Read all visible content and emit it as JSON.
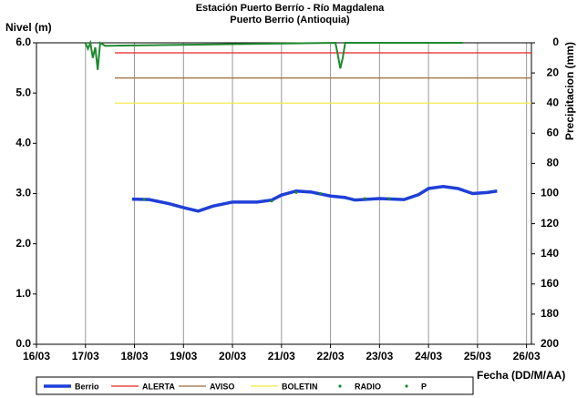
{
  "chart_data": {
    "type": "line",
    "title": "Estación Puerto Berrío - Río Magdalena",
    "subtitle": "Puerto Berrio (Antioquia)",
    "y_label": "Nivel (m)",
    "y2_label": "Precipitacion (mm)",
    "x_label": "Fecha (DD/M/AA)",
    "xlim": [
      16,
      26.1
    ],
    "xticks": [
      {
        "value": 16,
        "label": "16/03"
      },
      {
        "value": 17,
        "label": "17/03"
      },
      {
        "value": 18,
        "label": "18/03"
      },
      {
        "value": 19,
        "label": "19/03"
      },
      {
        "value": 20,
        "label": "20/03"
      },
      {
        "value": 21,
        "label": "21/03"
      },
      {
        "value": 22,
        "label": "22/03"
      },
      {
        "value": 23,
        "label": "23/03"
      },
      {
        "value": 24,
        "label": "24/03"
      },
      {
        "value": 25,
        "label": "25/03"
      },
      {
        "value": 26,
        "label": "26/03"
      }
    ],
    "ylim": [
      0,
      6
    ],
    "yticks": [
      {
        "value": 0,
        "label": "0.0"
      },
      {
        "value": 1,
        "label": "1.0"
      },
      {
        "value": 2,
        "label": "2.0"
      },
      {
        "value": 3,
        "label": "3.0"
      },
      {
        "value": 4,
        "label": "4.0"
      },
      {
        "value": 5,
        "label": "5.0"
      },
      {
        "value": 6,
        "label": "6.0"
      }
    ],
    "y2lim": [
      200,
      0
    ],
    "y2ticks": [
      0,
      20,
      40,
      60,
      80,
      100,
      120,
      140,
      160,
      180,
      200
    ],
    "grid": "x",
    "series": [
      {
        "name": "Berrio",
        "color": "#1f3fd8",
        "style": "thick",
        "x": [
          17.95,
          18.3,
          18.7,
          19.0,
          19.3,
          19.6,
          20.0,
          20.5,
          20.8,
          21.0,
          21.3,
          21.6,
          22.0,
          22.3,
          22.5,
          23.0,
          23.5,
          23.8,
          24.0,
          24.3,
          24.6,
          24.9,
          25.2,
          25.4
        ],
        "values": [
          2.89,
          2.88,
          2.8,
          2.72,
          2.65,
          2.75,
          2.83,
          2.83,
          2.87,
          2.97,
          3.05,
          3.03,
          2.95,
          2.92,
          2.87,
          2.9,
          2.88,
          2.98,
          3.1,
          3.14,
          3.1,
          3.0,
          3.02,
          3.05
        ]
      },
      {
        "name": "ALERTA",
        "color": "#e8241e",
        "style": "line",
        "x": [
          17.6,
          26.1
        ],
        "values": [
          5.8,
          5.8
        ]
      },
      {
        "name": "AVISO",
        "color": "#9b6b3a",
        "style": "line",
        "x": [
          17.6,
          26.1
        ],
        "values": [
          5.3,
          5.3
        ]
      },
      {
        "name": "BOLETIN",
        "color": "#f2ea3a",
        "style": "line",
        "x": [
          17.6,
          26.1
        ],
        "values": [
          4.8,
          4.8
        ]
      },
      {
        "name": "RADIO",
        "color": "#1e8a2e",
        "style": "dots",
        "x": [
          18.2,
          20.8,
          21.3,
          21.8,
          22.7,
          23.2
        ],
        "values": [
          2.88,
          2.85,
          3.02,
          3.0,
          2.9,
          2.9
        ]
      },
      {
        "name": "P",
        "color": "#1e8a2e",
        "style": "line",
        "axis": "y2",
        "x": [
          17.0,
          17.05,
          17.1,
          17.15,
          17.2,
          17.25,
          17.3,
          17.4,
          22.1,
          22.15,
          22.2,
          22.25,
          22.3,
          24.7
        ],
        "values": [
          0,
          4,
          0,
          10,
          3,
          18,
          0,
          2,
          0,
          8,
          17,
          10,
          0,
          0
        ]
      }
    ],
    "legend": "bottom"
  }
}
